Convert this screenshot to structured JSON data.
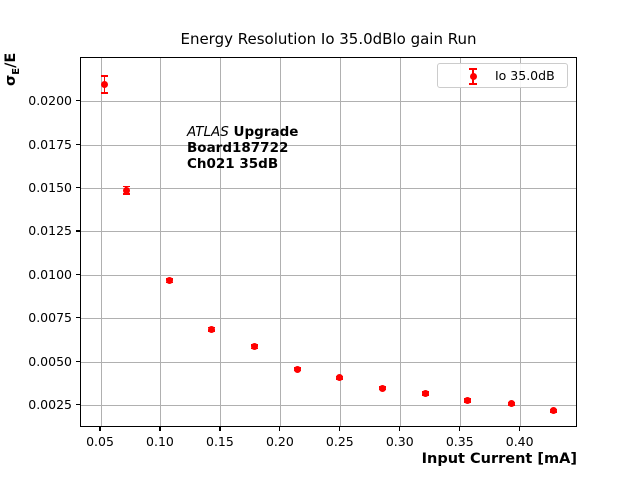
{
  "chart_data": {
    "type": "scatter",
    "title": "Energy Resolution Io 35.0dBlo gain Run",
    "xlabel": "Input Current [mA]",
    "ylabel": "σE/E",
    "ylabel_parts": {
      "sigma": "σ",
      "sub": "E",
      "rest": "/E"
    },
    "annotation": {
      "line1_italic": "ATLAS",
      "line1_bold": " Upgrade",
      "line2": "Board187722",
      "line3": "Ch021 35dB"
    },
    "legend": {
      "label": "Io 35.0dB",
      "position": "upper right"
    },
    "grid": true,
    "colors": {
      "marker": "#ff0000",
      "grid": "#b0b0b0",
      "spine": "#000000",
      "background": "#ffffff",
      "legend_edge": "#cccccc"
    },
    "xlim": [
      0.0333,
      0.4478
    ],
    "ylim": [
      0.00121,
      0.02252
    ],
    "xticks": [
      0.05,
      0.1,
      0.15,
      0.2,
      0.25,
      0.3,
      0.35,
      0.4
    ],
    "xtick_labels": [
      "0.05",
      "0.10",
      "0.15",
      "0.20",
      "0.25",
      "0.30",
      "0.35",
      "0.40"
    ],
    "yticks": [
      0.0025,
      0.005,
      0.0075,
      0.01,
      0.0125,
      0.015,
      0.0175,
      0.02
    ],
    "ytick_labels": [
      "0.0025",
      "0.0050",
      "0.0075",
      "0.0100",
      "0.0125",
      "0.0150",
      "0.0175",
      "0.0200"
    ],
    "series": [
      {
        "name": "Io 35.0dB",
        "color": "#ff0000",
        "marker": "o",
        "x": [
          0.053,
          0.071,
          0.107,
          0.142,
          0.178,
          0.214,
          0.249,
          0.285,
          0.321,
          0.356,
          0.392,
          0.427
        ],
        "y": [
          0.021,
          0.0149,
          0.0097,
          0.0069,
          0.0059,
          0.0046,
          0.0041,
          0.0035,
          0.0032,
          0.0028,
          0.0026,
          0.0022
        ],
        "yerr": [
          0.0005,
          0.00022,
          0.0001,
          0.0001,
          0.0001,
          8e-05,
          8e-05,
          8e-05,
          8e-05,
          8e-05,
          8e-05,
          8e-05
        ]
      }
    ]
  }
}
